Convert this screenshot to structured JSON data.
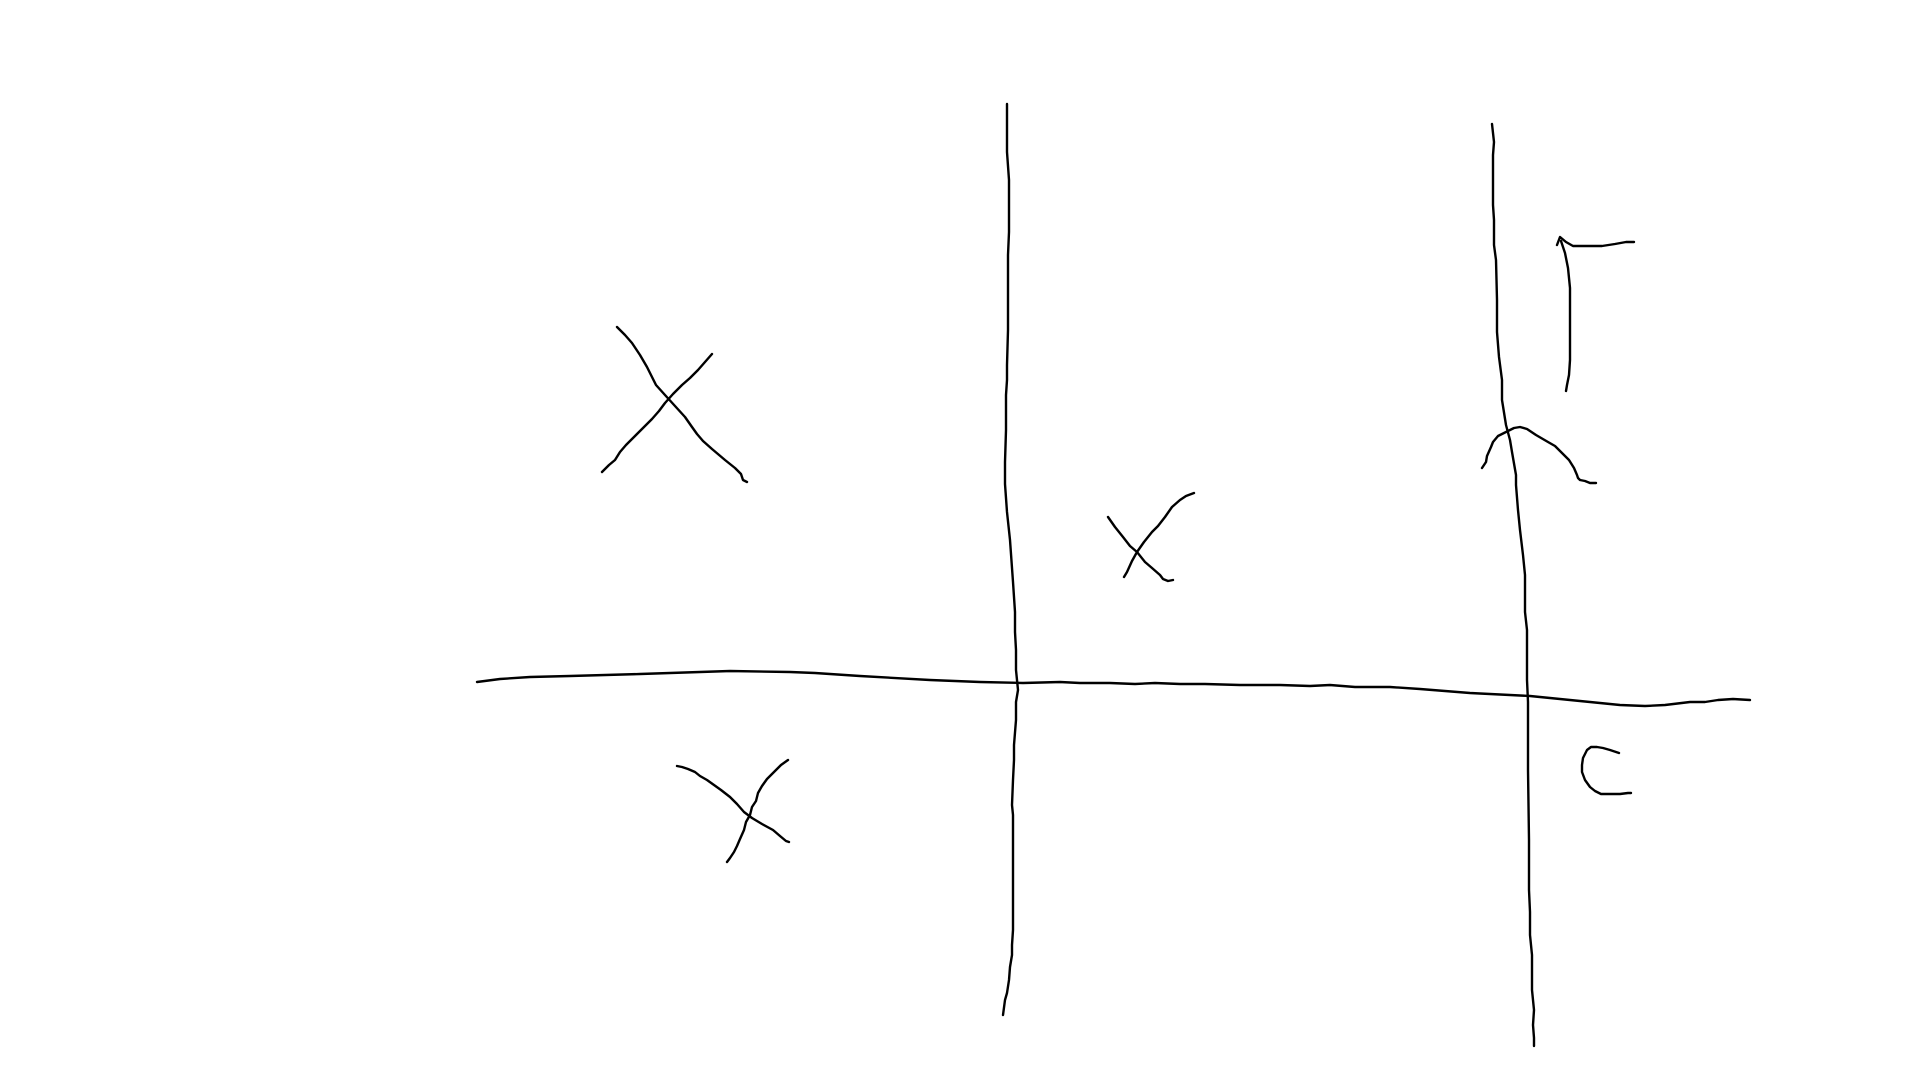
{
  "sketch": {
    "description_visible_text": "",
    "ink_color": "#000000",
    "background_color": "#ffffff",
    "grid": {
      "rows": 2,
      "columns": 3
    },
    "cells": [
      {
        "row": 1,
        "column": 1,
        "mark": "X"
      },
      {
        "row": 1,
        "column": 2,
        "mark": "X"
      },
      {
        "row": 1,
        "column": 3,
        "mark": "partial-shape"
      },
      {
        "row": 2,
        "column": 1,
        "mark": "X"
      },
      {
        "row": 2,
        "column": 2,
        "mark": ""
      },
      {
        "row": 2,
        "column": 3,
        "mark": "C"
      }
    ]
  }
}
